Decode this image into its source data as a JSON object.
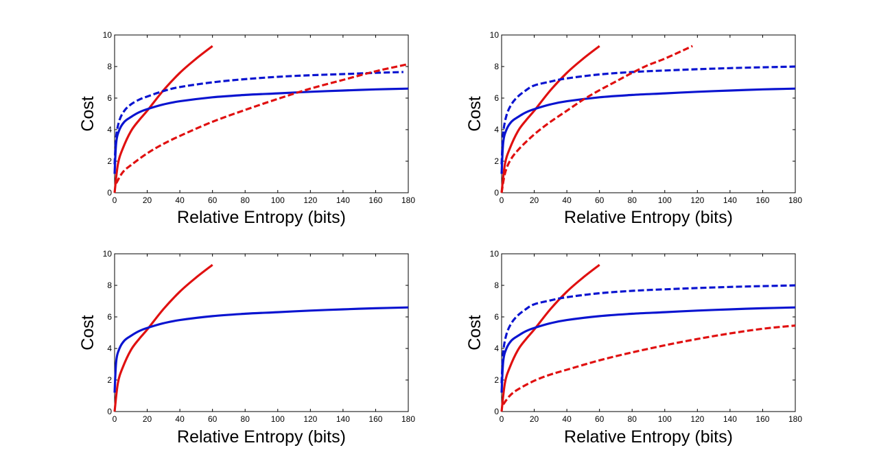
{
  "chart_data": [
    {
      "type": "line",
      "xlabel": "Relative Entropy (bits)",
      "ylabel": "Cost",
      "xlim": [
        0,
        180
      ],
      "ylim": [
        0,
        10
      ],
      "xticks": [
        0,
        20,
        40,
        60,
        80,
        100,
        120,
        140,
        160,
        180
      ],
      "yticks": [
        0,
        2,
        4,
        6,
        8,
        10
      ],
      "grid": false,
      "series": [
        {
          "color": "#e01010",
          "style": "solid",
          "x": [
            0,
            2,
            5,
            10,
            15,
            20,
            30,
            40,
            50,
            60
          ],
          "y": [
            0,
            1.8,
            2.8,
            3.9,
            4.6,
            5.2,
            6.5,
            7.6,
            8.5,
            9.3
          ]
        },
        {
          "color": "#0a14d0",
          "style": "solid",
          "x": [
            0,
            1,
            3,
            6,
            10,
            15,
            20,
            30,
            40,
            60,
            80,
            100,
            120,
            140,
            160,
            180
          ],
          "y": [
            1.2,
            3.2,
            4.0,
            4.5,
            4.8,
            5.1,
            5.3,
            5.6,
            5.8,
            6.05,
            6.2,
            6.3,
            6.4,
            6.48,
            6.55,
            6.6
          ]
        },
        {
          "color": "#0a14d0",
          "style": "dashed",
          "x": [
            0,
            1,
            3,
            6,
            10,
            15,
            20,
            30,
            40,
            60,
            80,
            100,
            120,
            140,
            160,
            177
          ],
          "y": [
            1.8,
            3.6,
            4.6,
            5.2,
            5.6,
            5.9,
            6.1,
            6.45,
            6.7,
            7.0,
            7.2,
            7.35,
            7.45,
            7.52,
            7.6,
            7.65
          ]
        },
        {
          "color": "#e01010",
          "style": "dashed",
          "x": [
            1,
            5,
            10,
            20,
            30,
            40,
            60,
            80,
            100,
            120,
            140,
            160,
            180
          ],
          "y": [
            0.6,
            1.3,
            1.75,
            2.5,
            3.1,
            3.6,
            4.5,
            5.25,
            5.95,
            6.6,
            7.15,
            7.7,
            8.15
          ]
        }
      ]
    },
    {
      "type": "line",
      "xlabel": "Relative Entropy  (bits)",
      "ylabel": "Cost",
      "xlim": [
        0,
        180
      ],
      "ylim": [
        0,
        10
      ],
      "xticks": [
        0,
        20,
        40,
        60,
        80,
        100,
        120,
        140,
        160,
        180
      ],
      "yticks": [
        0,
        2,
        4,
        6,
        8,
        10
      ],
      "grid": false,
      "series": [
        {
          "color": "#e01010",
          "style": "solid",
          "x": [
            0,
            2,
            5,
            10,
            15,
            20,
            30,
            40,
            50,
            60
          ],
          "y": [
            0,
            1.8,
            2.8,
            3.9,
            4.6,
            5.2,
            6.5,
            7.6,
            8.5,
            9.3
          ]
        },
        {
          "color": "#0a14d0",
          "style": "solid",
          "x": [
            0,
            1,
            3,
            6,
            10,
            15,
            20,
            30,
            40,
            60,
            80,
            100,
            120,
            140,
            160,
            180
          ],
          "y": [
            1.2,
            3.2,
            4.0,
            4.5,
            4.8,
            5.1,
            5.3,
            5.6,
            5.8,
            6.05,
            6.2,
            6.3,
            6.4,
            6.48,
            6.55,
            6.6
          ]
        },
        {
          "color": "#0a14d0",
          "style": "dashed",
          "x": [
            0,
            1,
            3,
            6,
            10,
            15,
            20,
            30,
            40,
            60,
            80,
            100,
            120,
            140,
            160,
            180
          ],
          "y": [
            1.8,
            3.8,
            4.9,
            5.6,
            6.1,
            6.5,
            6.8,
            7.05,
            7.25,
            7.5,
            7.65,
            7.75,
            7.83,
            7.9,
            7.95,
            8.0
          ]
        },
        {
          "color": "#e01010",
          "style": "dashed",
          "x": [
            0,
            2,
            5,
            10,
            20,
            30,
            40,
            50,
            60,
            70,
            80,
            90,
            100,
            117
          ],
          "y": [
            0,
            1.2,
            2.0,
            2.7,
            3.7,
            4.5,
            5.2,
            5.9,
            6.5,
            7.05,
            7.6,
            8.1,
            8.5,
            9.3
          ]
        }
      ]
    },
    {
      "type": "line",
      "xlabel": "Relative Entropy  (bits)",
      "ylabel": "Cost",
      "xlim": [
        0,
        180
      ],
      "ylim": [
        0,
        10
      ],
      "xticks": [
        0,
        20,
        40,
        60,
        80,
        100,
        120,
        140,
        160,
        180
      ],
      "yticks": [
        0,
        2,
        4,
        6,
        8,
        10
      ],
      "grid": false,
      "series": [
        {
          "color": "#e01010",
          "style": "solid",
          "x": [
            0,
            2,
            5,
            10,
            15,
            20,
            30,
            40,
            50,
            60
          ],
          "y": [
            0,
            1.8,
            2.8,
            3.9,
            4.6,
            5.2,
            6.5,
            7.6,
            8.5,
            9.3
          ]
        },
        {
          "color": "#0a14d0",
          "style": "solid",
          "x": [
            0,
            1,
            3,
            6,
            10,
            15,
            20,
            30,
            40,
            60,
            80,
            100,
            120,
            140,
            160,
            180
          ],
          "y": [
            1.2,
            3.2,
            4.0,
            4.5,
            4.8,
            5.1,
            5.3,
            5.6,
            5.8,
            6.05,
            6.2,
            6.3,
            6.4,
            6.48,
            6.55,
            6.6
          ]
        }
      ]
    },
    {
      "type": "line",
      "xlabel": "Relative Entropy  (bits)",
      "ylabel": "Cost",
      "xlim": [
        0,
        180
      ],
      "ylim": [
        0,
        10
      ],
      "xticks": [
        0,
        20,
        40,
        60,
        80,
        100,
        120,
        140,
        160,
        180
      ],
      "yticks": [
        0,
        2,
        4,
        6,
        8,
        10
      ],
      "grid": false,
      "series": [
        {
          "color": "#e01010",
          "style": "solid",
          "x": [
            0,
            2,
            5,
            10,
            15,
            20,
            30,
            40,
            50,
            60
          ],
          "y": [
            0,
            1.8,
            2.8,
            3.9,
            4.6,
            5.2,
            6.5,
            7.6,
            8.5,
            9.3
          ]
        },
        {
          "color": "#0a14d0",
          "style": "solid",
          "x": [
            0,
            1,
            3,
            6,
            10,
            15,
            20,
            30,
            40,
            60,
            80,
            100,
            120,
            140,
            160,
            180
          ],
          "y": [
            1.2,
            3.2,
            4.0,
            4.5,
            4.8,
            5.1,
            5.3,
            5.6,
            5.8,
            6.05,
            6.2,
            6.3,
            6.4,
            6.48,
            6.55,
            6.6
          ]
        },
        {
          "color": "#0a14d0",
          "style": "dashed",
          "x": [
            0,
            1,
            3,
            6,
            10,
            15,
            20,
            30,
            40,
            60,
            80,
            100,
            120,
            140,
            160,
            180
          ],
          "y": [
            1.8,
            3.8,
            4.9,
            5.6,
            6.1,
            6.5,
            6.8,
            7.05,
            7.25,
            7.5,
            7.65,
            7.75,
            7.83,
            7.9,
            7.95,
            8.0
          ]
        },
        {
          "color": "#e01010",
          "style": "dashed",
          "x": [
            1,
            5,
            10,
            20,
            30,
            40,
            60,
            80,
            100,
            120,
            140,
            160,
            180
          ],
          "y": [
            0.45,
            1.0,
            1.4,
            1.95,
            2.35,
            2.65,
            3.25,
            3.75,
            4.2,
            4.6,
            4.95,
            5.25,
            5.45
          ]
        }
      ]
    }
  ]
}
